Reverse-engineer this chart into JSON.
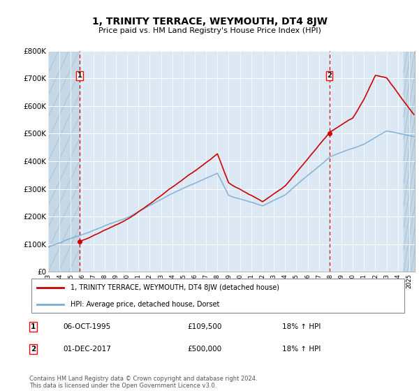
{
  "title": "1, TRINITY TERRACE, WEYMOUTH, DT4 8JW",
  "subtitle": "Price paid vs. HM Land Registry's House Price Index (HPI)",
  "ylim": [
    0,
    800000
  ],
  "yticks": [
    0,
    100000,
    200000,
    300000,
    400000,
    500000,
    600000,
    700000,
    800000
  ],
  "ytick_labels": [
    "£0",
    "£100K",
    "£200K",
    "£300K",
    "£400K",
    "£500K",
    "£600K",
    "£700K",
    "£800K"
  ],
  "xlim_left": 1993.0,
  "xlim_right": 2025.5,
  "transaction1": {
    "date_num": 1995.8,
    "price": 109500,
    "label": "1"
  },
  "transaction2": {
    "date_num": 2017.92,
    "price": 500000,
    "label": "2"
  },
  "annotation1": {
    "date": "06-OCT-1995",
    "price": "£109,500",
    "hpi": "18% ↑ HPI"
  },
  "annotation2": {
    "date": "01-DEC-2017",
    "price": "£500,000",
    "hpi": "18% ↑ HPI"
  },
  "legend_line1": "1, TRINITY TERRACE, WEYMOUTH, DT4 8JW (detached house)",
  "legend_line2": "HPI: Average price, detached house, Dorset",
  "footer": "Contains HM Land Registry data © Crown copyright and database right 2024.\nThis data is licensed under the Open Government Licence v3.0.",
  "line_color_red": "#cc0000",
  "line_color_blue": "#7aadd4",
  "bg_color": "#dce9f5",
  "grid_color": "#ffffff",
  "vline_color": "#cc0000",
  "hatch_region_color": "#c5d8e8"
}
